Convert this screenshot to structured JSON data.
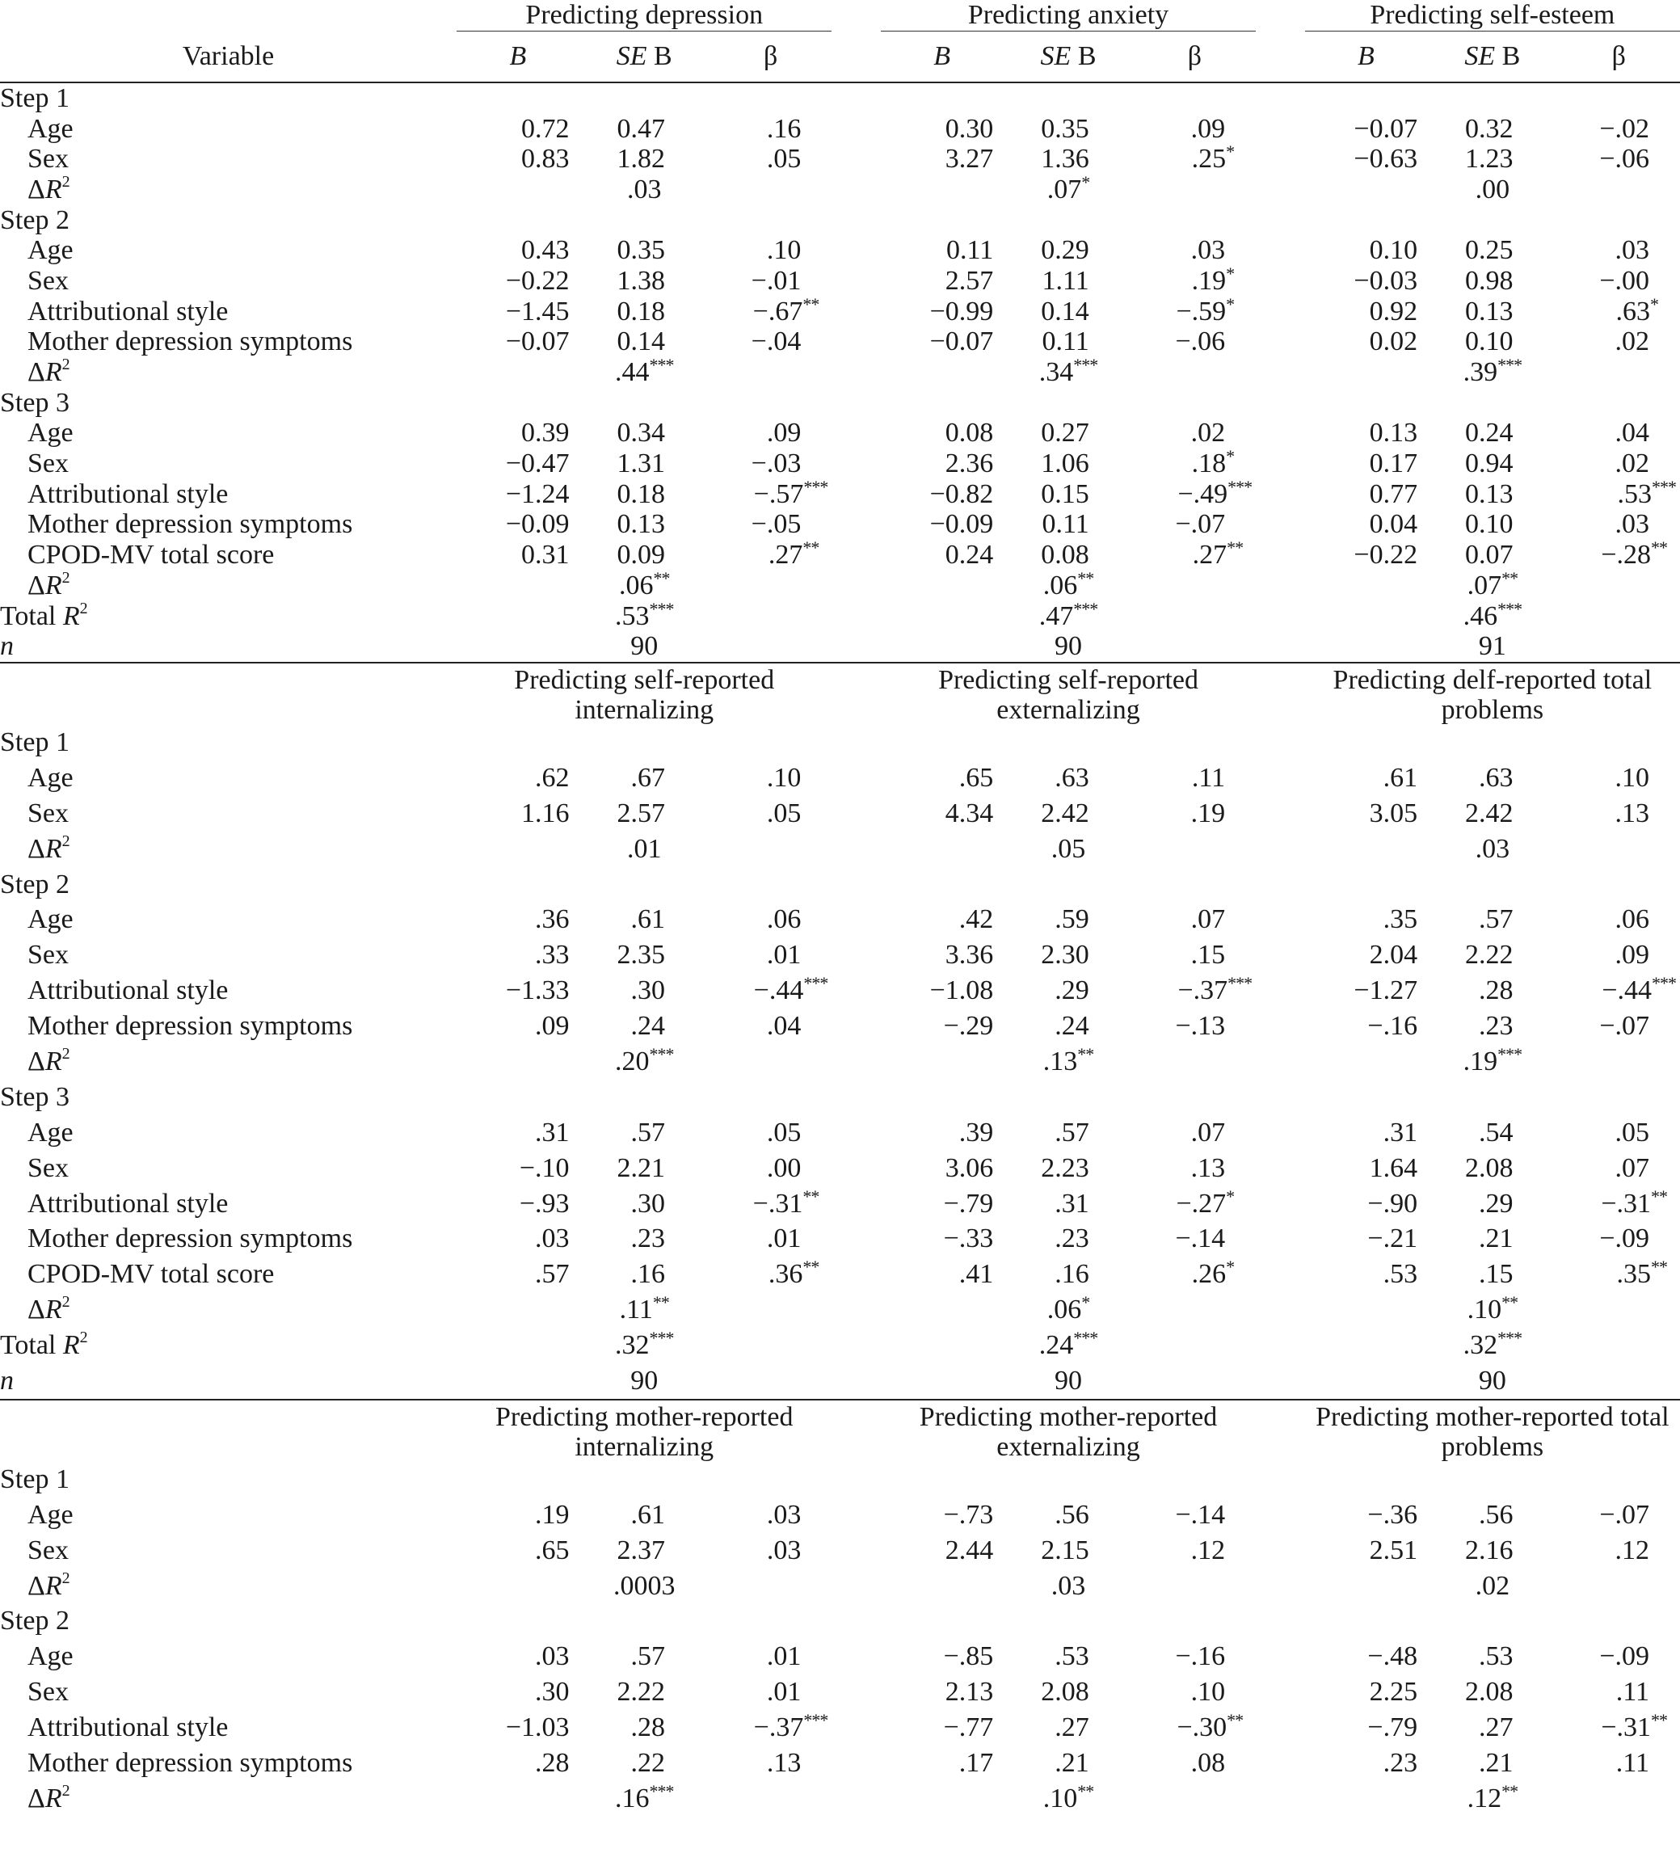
{
  "header": {
    "variable_label": "Variable",
    "col_b": "B",
    "col_se_italic": "SE",
    "col_se_rest": " B",
    "col_beta": "β"
  },
  "panels": [
    {
      "titles": [
        "Predicting depression",
        "Predicting anxiety",
        "Predicting self-esteem"
      ],
      "steps": [
        {
          "label": "Step 1",
          "rows": [
            {
              "var": "Age",
              "v": [
                "0.72",
                "0.47",
                ".16",
                "",
                "0.30",
                "0.35",
                ".09",
                "",
                "−0.07",
                "0.32",
                "−.02",
                ""
              ]
            },
            {
              "var": "Sex",
              "v": [
                "0.83",
                "1.82",
                ".05",
                "",
                "3.27",
                "1.36",
                ".25",
                "*",
                "−0.63",
                "1.23",
                "−.06",
                ""
              ]
            }
          ],
          "dr2": [
            ".03",
            "",
            ".07",
            "*",
            ".00",
            ""
          ]
        },
        {
          "label": "Step 2",
          "rows": [
            {
              "var": "Age",
              "v": [
                "0.43",
                "0.35",
                ".10",
                "",
                "0.11",
                "0.29",
                ".03",
                "",
                "0.10",
                "0.25",
                ".03",
                ""
              ]
            },
            {
              "var": "Sex",
              "v": [
                "−0.22",
                "1.38",
                "−.01",
                "",
                "2.57",
                "1.11",
                ".19",
                "*",
                "−0.03",
                "0.98",
                "−.00",
                ""
              ]
            },
            {
              "var": "Attributional style",
              "v": [
                "−1.45",
                "0.18",
                "−.67",
                "**",
                "−0.99",
                "0.14",
                "−.59",
                "*",
                "0.92",
                "0.13",
                ".63",
                "*"
              ]
            },
            {
              "var": "Mother depression symptoms",
              "v": [
                "−0.07",
                "0.14",
                "−.04",
                "",
                "−0.07",
                "0.11",
                "−.06",
                "",
                "0.02",
                "0.10",
                ".02",
                ""
              ]
            }
          ],
          "dr2": [
            ".44",
            "***",
            ".34",
            "***",
            ".39",
            "***"
          ]
        },
        {
          "label": "Step 3",
          "rows": [
            {
              "var": "Age",
              "v": [
                "0.39",
                "0.34",
                ".09",
                "",
                "0.08",
                "0.27",
                ".02",
                "",
                "0.13",
                "0.24",
                ".04",
                ""
              ]
            },
            {
              "var": "Sex",
              "v": [
                "−0.47",
                "1.31",
                "−.03",
                "",
                "2.36",
                "1.06",
                ".18",
                "*",
                "0.17",
                "0.94",
                ".02",
                ""
              ]
            },
            {
              "var": "Attributional style",
              "v": [
                "−1.24",
                "0.18",
                "−.57",
                "***",
                "−0.82",
                "0.15",
                "−.49",
                "***",
                "0.77",
                "0.13",
                ".53",
                "***"
              ]
            },
            {
              "var": "Mother depression symptoms",
              "v": [
                "−0.09",
                "0.13",
                "−.05",
                "",
                "−0.09",
                "0.11",
                "−.07",
                "",
                "0.04",
                "0.10",
                ".03",
                ""
              ]
            },
            {
              "var": "CPOD-MV total score",
              "v": [
                "0.31",
                "0.09",
                ".27",
                "**",
                "0.24",
                "0.08",
                ".27",
                "**",
                "−0.22",
                "0.07",
                "−.28",
                "**"
              ]
            }
          ],
          "dr2": [
            ".06",
            "**",
            ".06",
            "**",
            ".07",
            "**"
          ]
        }
      ],
      "total_r2": [
        ".53",
        "***",
        ".47",
        "***",
        ".46",
        "***"
      ],
      "n": [
        "90",
        "90",
        "91"
      ]
    },
    {
      "titles": [
        "Predicting self-reported internalizing",
        "Predicting self-reported externalizing",
        "Predicting delf-reported total problems"
      ],
      "steps": [
        {
          "label": "Step 1",
          "rows": [
            {
              "var": "Age",
              "v": [
                ".62",
                ".67",
                ".10",
                "",
                ".65",
                ".63",
                ".11",
                "",
                ".61",
                ".63",
                ".10",
                ""
              ]
            },
            {
              "var": "Sex",
              "v": [
                "1.16",
                "2.57",
                ".05",
                "",
                "4.34",
                "2.42",
                ".19",
                "",
                "3.05",
                "2.42",
                ".13",
                ""
              ]
            }
          ],
          "dr2": [
            ".01",
            "",
            ".05",
            "",
            ".03",
            ""
          ]
        },
        {
          "label": "Step 2",
          "rows": [
            {
              "var": "Age",
              "v": [
                ".36",
                ".61",
                ".06",
                "",
                ".42",
                ".59",
                ".07",
                "",
                ".35",
                ".57",
                ".06",
                ""
              ]
            },
            {
              "var": "Sex",
              "v": [
                ".33",
                "2.35",
                ".01",
                "",
                "3.36",
                "2.30",
                ".15",
                "",
                "2.04",
                "2.22",
                ".09",
                ""
              ]
            },
            {
              "var": "Attributional style",
              "v": [
                "−1.33",
                ".30",
                "−.44",
                "***",
                "−1.08",
                ".29",
                "−.37",
                "***",
                "−1.27",
                ".28",
                "−.44",
                "***"
              ]
            },
            {
              "var": "Mother depression symptoms",
              "v": [
                ".09",
                ".24",
                ".04",
                "",
                "−.29",
                ".24",
                "−.13",
                "",
                "−.16",
                ".23",
                "−.07",
                ""
              ]
            }
          ],
          "dr2": [
            ".20",
            "***",
            ".13",
            "**",
            ".19",
            "***"
          ]
        },
        {
          "label": "Step 3",
          "rows": [
            {
              "var": "Age",
              "v": [
                ".31",
                ".57",
                ".05",
                "",
                ".39",
                ".57",
                ".07",
                "",
                ".31",
                ".54",
                ".05",
                ""
              ]
            },
            {
              "var": "Sex",
              "v": [
                "−.10",
                "2.21",
                ".00",
                "",
                "3.06",
                "2.23",
                ".13",
                "",
                "1.64",
                "2.08",
                ".07",
                ""
              ]
            },
            {
              "var": "Attributional style",
              "v": [
                "−.93",
                ".30",
                "−.31",
                "**",
                "−.79",
                ".31",
                "−.27",
                "*",
                "−.90",
                ".29",
                "−.31",
                "**"
              ]
            },
            {
              "var": "Mother depression symptoms",
              "v": [
                ".03",
                ".23",
                ".01",
                "",
                "−.33",
                ".23",
                "−.14",
                "",
                "−.21",
                ".21",
                "−.09",
                ""
              ]
            },
            {
              "var": "CPOD-MV total score",
              "v": [
                ".57",
                ".16",
                ".36",
                "**",
                ".41",
                ".16",
                ".26",
                "*",
                ".53",
                ".15",
                ".35",
                "**"
              ]
            }
          ],
          "dr2": [
            ".11",
            "**",
            ".06",
            "*",
            ".10",
            "**"
          ]
        }
      ],
      "total_r2": [
        ".32",
        "***",
        ".24",
        "***",
        ".32",
        "***"
      ],
      "n": [
        "90",
        "90",
        "90"
      ]
    },
    {
      "titles": [
        "Predicting mother-reported internalizing",
        "Predicting mother-reported externalizing",
        "Predicting mother-reported total problems"
      ],
      "steps": [
        {
          "label": "Step 1",
          "rows": [
            {
              "var": "Age",
              "v": [
                ".19",
                ".61",
                ".03",
                "",
                "−.73",
                ".56",
                "−.14",
                "",
                "−.36",
                ".56",
                "−.07",
                ""
              ]
            },
            {
              "var": "Sex",
              "v": [
                ".65",
                "2.37",
                ".03",
                "",
                "2.44",
                "2.15",
                ".12",
                "",
                "2.51",
                "2.16",
                ".12",
                ""
              ]
            }
          ],
          "dr2": [
            ".0003",
            "",
            ".03",
            "",
            ".02",
            ""
          ]
        },
        {
          "label": "Step 2",
          "rows": [
            {
              "var": "Age",
              "v": [
                ".03",
                ".57",
                ".01",
                "",
                "−.85",
                ".53",
                "−.16",
                "",
                "−.48",
                ".53",
                "−.09",
                ""
              ]
            },
            {
              "var": "Sex",
              "v": [
                ".30",
                "2.22",
                ".01",
                "",
                "2.13",
                "2.08",
                ".10",
                "",
                "2.25",
                "2.08",
                ".11",
                ""
              ]
            },
            {
              "var": "Attributional style",
              "v": [
                "−1.03",
                ".28",
                "−.37",
                "***",
                "−.77",
                ".27",
                "−.30",
                "**",
                "−.79",
                ".27",
                "−.31",
                "**"
              ]
            },
            {
              "var": "Mother depression symptoms",
              "v": [
                ".28",
                ".22",
                ".13",
                "",
                ".17",
                ".21",
                ".08",
                "",
                ".23",
                ".21",
                ".11",
                ""
              ]
            }
          ],
          "dr2": [
            ".16",
            "***",
            ".10",
            "**",
            ".12",
            "**"
          ]
        }
      ]
    }
  ],
  "labels": {
    "delta_r2_prefix": "Δ",
    "r": "R",
    "sq": "2",
    "total_r2_prefix": "Total ",
    "n": "n"
  }
}
